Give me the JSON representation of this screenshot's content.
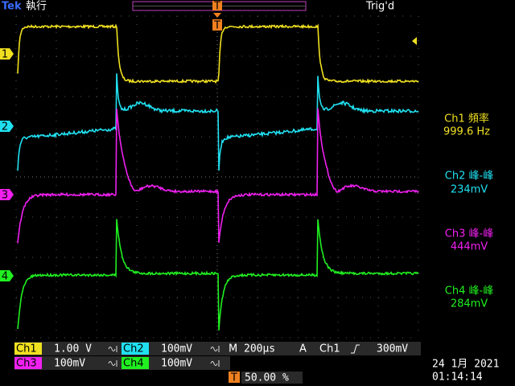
{
  "header": {
    "brand": "Tek",
    "status": "執行",
    "trigger_state": "Trig'd",
    "trigger_marker": "T"
  },
  "channel_markers": [
    "1",
    "2",
    "3",
    "4"
  ],
  "measurements": [
    {
      "label": "Ch1 頻率",
      "value": "999.6 Hz"
    },
    {
      "label": "Ch2 峰-峰",
      "value": "234mV"
    },
    {
      "label": "Ch3 峰-峰",
      "value": "444mV"
    },
    {
      "label": "Ch4 峰-峰",
      "value": "284mV"
    }
  ],
  "footer": {
    "row1": {
      "ch1": "Ch1",
      "ch1_scale": "1.00 V",
      "ch2": "Ch2",
      "ch2_scale": "100mV",
      "timebase_label": "M",
      "timebase": "200µs",
      "trigger_label": "A",
      "trigger_source": "Ch1",
      "trigger_level": "300mV"
    },
    "row2": {
      "ch3": "Ch3",
      "ch3_scale": "100mV",
      "ch4": "Ch4",
      "ch4_scale": "100mV"
    },
    "trigger_position": "50.00 %",
    "date": "24 1月 2021",
    "time": "01:14:14"
  }
}
